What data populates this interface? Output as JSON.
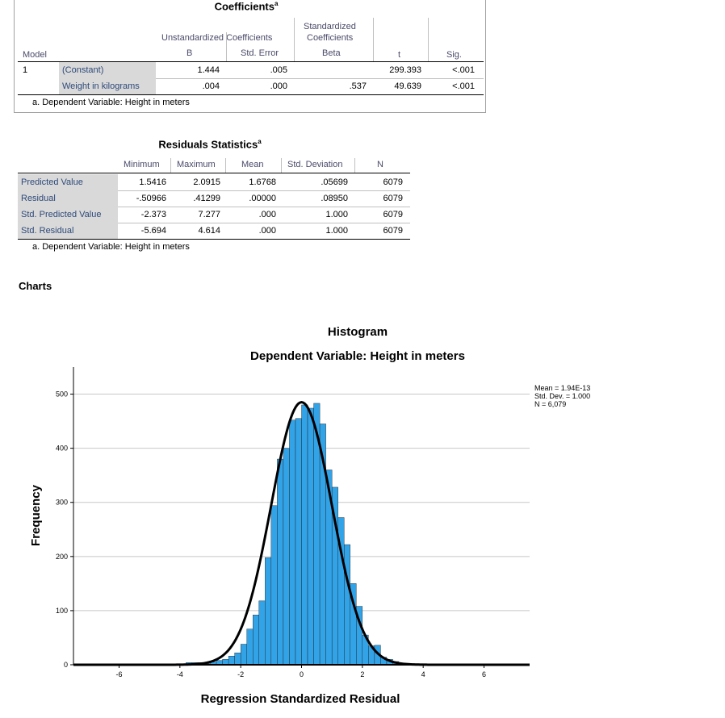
{
  "coefficients": {
    "title": "Coefficients",
    "title_sup": "a",
    "group_headers": {
      "unstandardized": "Unstandardized Coefficients",
      "standardized_l1": "Standardized",
      "standardized_l2": "Coefficients"
    },
    "columns": {
      "model": "Model",
      "b": "B",
      "std_error": "Std. Error",
      "beta": "Beta",
      "t": "t",
      "sig": "Sig."
    },
    "rows": [
      {
        "model": "1",
        "label": "(Constant)",
        "b": "1.444",
        "std_error": ".005",
        "beta": "",
        "t": "299.393",
        "sig": "<.001"
      },
      {
        "model": "",
        "label": "Weight in kilograms",
        "b": ".004",
        "std_error": ".000",
        "beta": ".537",
        "t": "49.639",
        "sig": "<.001"
      }
    ],
    "footnote": "a. Dependent Variable: Height in meters"
  },
  "residuals": {
    "title": "Residuals Statistics",
    "title_sup": "a",
    "columns": {
      "minimum": "Minimum",
      "maximum": "Maximum",
      "mean": "Mean",
      "std_dev": "Std. Deviation",
      "n": "N"
    },
    "rows": [
      {
        "label": "Predicted Value",
        "minimum": "1.5416",
        "maximum": "2.0915",
        "mean": "1.6768",
        "std_dev": ".05699",
        "n": "6079"
      },
      {
        "label": "Residual",
        "minimum": "-.50966",
        "maximum": ".41299",
        "mean": ".00000",
        "std_dev": ".08950",
        "n": "6079"
      },
      {
        "label": "Std. Predicted Value",
        "minimum": "-2.373",
        "maximum": "7.277",
        "mean": ".000",
        "std_dev": "1.000",
        "n": "6079"
      },
      {
        "label": "Std. Residual",
        "minimum": "-5.694",
        "maximum": "4.614",
        "mean": ".000",
        "std_dev": "1.000",
        "n": "6079"
      }
    ],
    "footnote": "a. Dependent Variable: Height in meters"
  },
  "charts_heading": "Charts",
  "chart_data": {
    "type": "bar",
    "title": "Histogram",
    "subtitle": "Dependent Variable: Height in meters",
    "xlabel": "Regression Standardized Residual",
    "ylabel": "Frequency",
    "xlim": [
      -7.5,
      7.5
    ],
    "ylim": [
      0,
      550
    ],
    "xticks": [
      -6,
      -4,
      -2,
      0,
      2,
      4,
      6
    ],
    "yticks": [
      0,
      100,
      200,
      300,
      400,
      500
    ],
    "grid": true,
    "bar_color": "#33a3e8",
    "curve_color": "#000000",
    "bin_width": 0.2,
    "bins_left": [
      -3.8,
      -3.6,
      -3.4,
      -3.2,
      -3.0,
      -2.8,
      -2.6,
      -2.4,
      -2.2,
      -2.0,
      -1.8,
      -1.6,
      -1.4,
      -1.2,
      -1.0,
      -0.8,
      -0.6,
      -0.4,
      -0.2,
      0.0,
      0.2,
      0.4,
      0.6,
      0.8,
      1.0,
      1.2,
      1.4,
      1.6,
      1.8,
      2.0,
      2.2,
      2.4,
      2.6,
      2.8,
      3.0,
      3.2,
      3.4,
      3.6,
      3.8
    ],
    "values": [
      4,
      4,
      4,
      2,
      5,
      8,
      10,
      16,
      22,
      38,
      66,
      92,
      118,
      198,
      294,
      380,
      400,
      452,
      455,
      480,
      474,
      483,
      445,
      360,
      328,
      272,
      222,
      150,
      108,
      55,
      35,
      36,
      14,
      10,
      6,
      3,
      2,
      2,
      2
    ],
    "normal_curve": {
      "mean": 0,
      "sd": 1,
      "n": 6079
    },
    "stats_box": [
      "Mean = 1.94E-13",
      "Std. Dev. = 1.000",
      "N = 6,079"
    ]
  }
}
